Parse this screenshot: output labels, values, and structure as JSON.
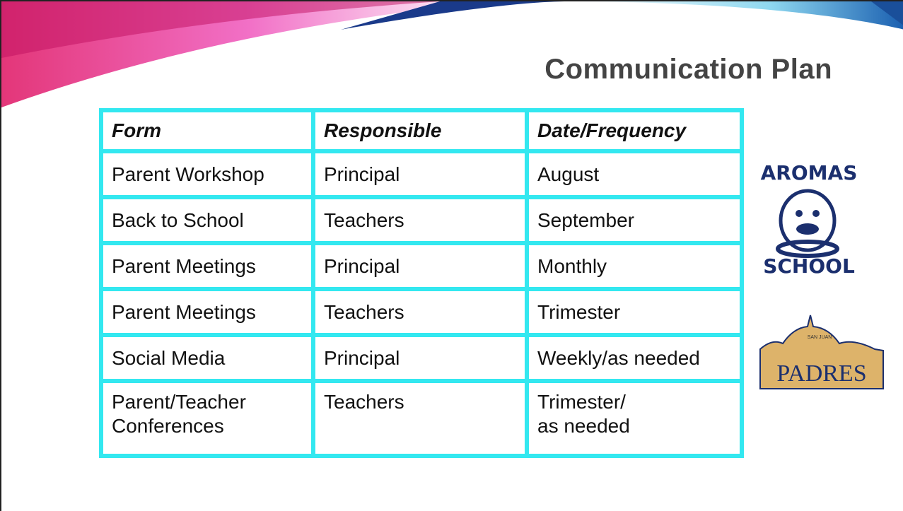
{
  "slide": {
    "title": "Communication Plan",
    "table": {
      "header": [
        "Form",
        "Responsible",
        "Date/Frequency"
      ],
      "rows": [
        [
          "Parent Workshop",
          "Principal",
          "August"
        ],
        [
          "Back to School",
          "Teachers",
          "September"
        ],
        [
          "Parent Meetings",
          "Principal",
          "Monthly"
        ],
        [
          "Parent Meetings",
          "Teachers",
          "Trimester"
        ],
        [
          "Social Media",
          "Principal",
          "Weekly/as needed"
        ],
        [
          "Parent/Teacher\nConferences",
          "Teachers",
          "Trimester/\nas needed"
        ]
      ]
    },
    "logos": {
      "aromas_top": "AROMAS",
      "aromas_bottom": "SCHOOL",
      "padres_arc": "SAN JUAN",
      "padres_name": "PADRES"
    }
  }
}
